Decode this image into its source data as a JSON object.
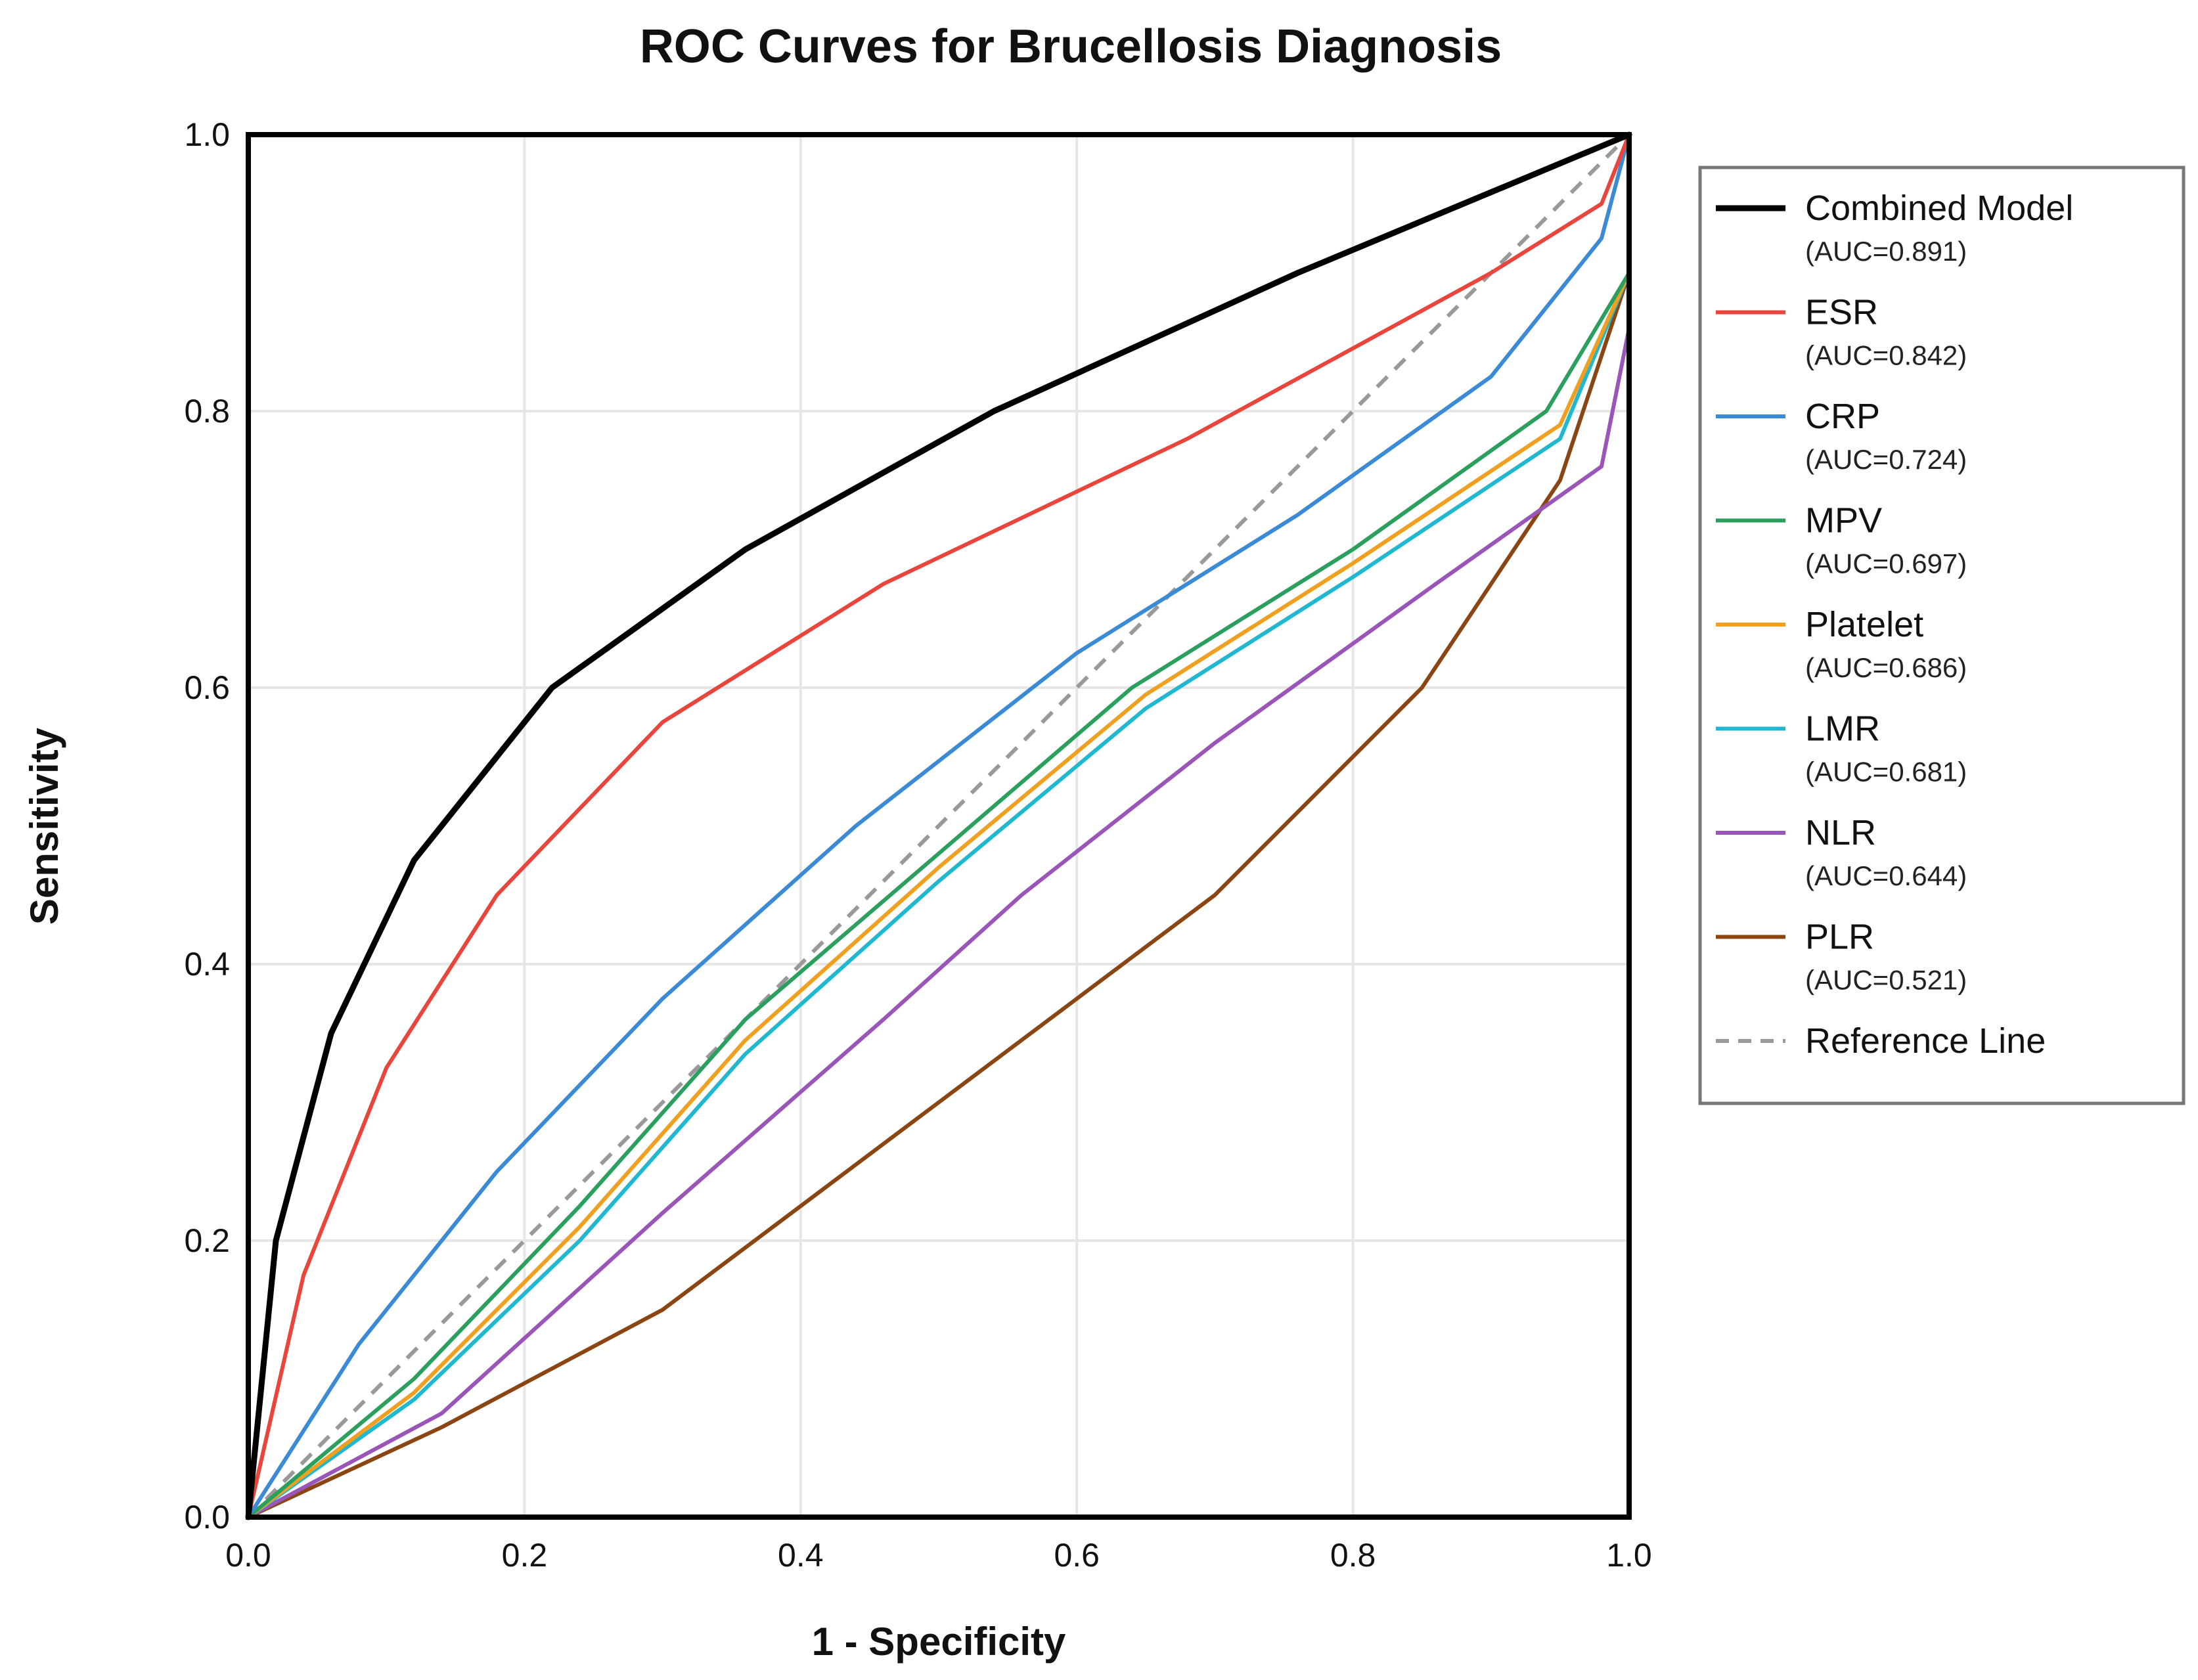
{
  "chart_data": {
    "type": "line",
    "title": "ROC Curves for Brucellosis Diagnosis",
    "xlabel": "1 - Specificity",
    "ylabel": "Sensitivity",
    "xlim": [
      0,
      1
    ],
    "ylim": [
      0,
      1
    ],
    "grid": true,
    "legend_position": "right",
    "x_ticks": [
      "0.0",
      "0.2",
      "0.4",
      "0.6",
      "0.8",
      "1.0"
    ],
    "y_ticks": [
      "0.0",
      "0.2",
      "0.4",
      "0.6",
      "0.8",
      "1.0"
    ],
    "series": [
      {
        "name": "Combined Model",
        "auc_label": "(AUC=0.891)",
        "color": "#000000",
        "width": 9,
        "points": [
          [
            0,
            0
          ],
          [
            0.02,
            0.2
          ],
          [
            0.06,
            0.35
          ],
          [
            0.12,
            0.475
          ],
          [
            0.22,
            0.6
          ],
          [
            0.36,
            0.7
          ],
          [
            0.54,
            0.8
          ],
          [
            0.76,
            0.9
          ],
          [
            1,
            1
          ]
        ]
      },
      {
        "name": "ESR",
        "auc_label": "(AUC=0.842)",
        "color": "#e8463d",
        "width": 6,
        "points": [
          [
            0,
            0
          ],
          [
            0.04,
            0.175
          ],
          [
            0.1,
            0.325
          ],
          [
            0.18,
            0.45
          ],
          [
            0.3,
            0.575
          ],
          [
            0.46,
            0.675
          ],
          [
            0.68,
            0.78
          ],
          [
            0.9,
            0.9
          ],
          [
            0.98,
            0.95
          ],
          [
            1,
            1
          ]
        ]
      },
      {
        "name": "CRP",
        "auc_label": "(AUC=0.724)",
        "color": "#3a8ad6",
        "width": 6,
        "points": [
          [
            0,
            0
          ],
          [
            0.08,
            0.125
          ],
          [
            0.18,
            0.25
          ],
          [
            0.3,
            0.375
          ],
          [
            0.44,
            0.5
          ],
          [
            0.6,
            0.625
          ],
          [
            0.76,
            0.725
          ],
          [
            0.9,
            0.825
          ],
          [
            0.98,
            0.925
          ],
          [
            1,
            1
          ]
        ]
      },
      {
        "name": "MPV",
        "auc_label": "(AUC=0.697)",
        "color": "#2ba05e",
        "width": 6,
        "points": [
          [
            0,
            0
          ],
          [
            0.12,
            0.1
          ],
          [
            0.24,
            0.225
          ],
          [
            0.36,
            0.36
          ],
          [
            0.5,
            0.48
          ],
          [
            0.64,
            0.6
          ],
          [
            0.8,
            0.7
          ],
          [
            0.94,
            0.8
          ],
          [
            1,
            0.9
          ]
        ]
      },
      {
        "name": "Platelet",
        "auc_label": "(AUC=0.686)",
        "color": "#f0a020",
        "width": 6,
        "points": [
          [
            0,
            0
          ],
          [
            0.12,
            0.09
          ],
          [
            0.24,
            0.21
          ],
          [
            0.36,
            0.345
          ],
          [
            0.5,
            0.47
          ],
          [
            0.65,
            0.595
          ],
          [
            0.8,
            0.69
          ],
          [
            0.95,
            0.79
          ],
          [
            1,
            0.9
          ]
        ]
      },
      {
        "name": "LMR",
        "auc_label": "(AUC=0.681)",
        "color": "#1fb8d0",
        "width": 6,
        "points": [
          [
            0,
            0
          ],
          [
            0.12,
            0.085
          ],
          [
            0.24,
            0.2
          ],
          [
            0.36,
            0.335
          ],
          [
            0.5,
            0.46
          ],
          [
            0.65,
            0.585
          ],
          [
            0.8,
            0.68
          ],
          [
            0.95,
            0.78
          ],
          [
            1,
            0.9
          ]
        ]
      },
      {
        "name": "NLR",
        "auc_label": "(AUC=0.644)",
        "color": "#9a55b8",
        "width": 6,
        "points": [
          [
            0,
            0
          ],
          [
            0.14,
            0.075
          ],
          [
            0.3,
            0.22
          ],
          [
            0.46,
            0.36
          ],
          [
            0.56,
            0.45
          ],
          [
            0.7,
            0.56
          ],
          [
            0.86,
            0.675
          ],
          [
            0.98,
            0.76
          ],
          [
            1,
            0.86
          ]
        ]
      },
      {
        "name": "PLR",
        "auc_label": "(AUC=0.521)",
        "color": "#8b4513",
        "width": 6,
        "points": [
          [
            0,
            0
          ],
          [
            0.14,
            0.065
          ],
          [
            0.3,
            0.15
          ],
          [
            0.5,
            0.3
          ],
          [
            0.7,
            0.45
          ],
          [
            0.85,
            0.6
          ],
          [
            0.95,
            0.75
          ],
          [
            1,
            0.9
          ]
        ]
      },
      {
        "name": "Reference Line",
        "auc_label": "",
        "color": "#999999",
        "width": 6,
        "dashed": true,
        "points": [
          [
            0,
            0
          ],
          [
            1,
            1
          ]
        ]
      }
    ]
  }
}
